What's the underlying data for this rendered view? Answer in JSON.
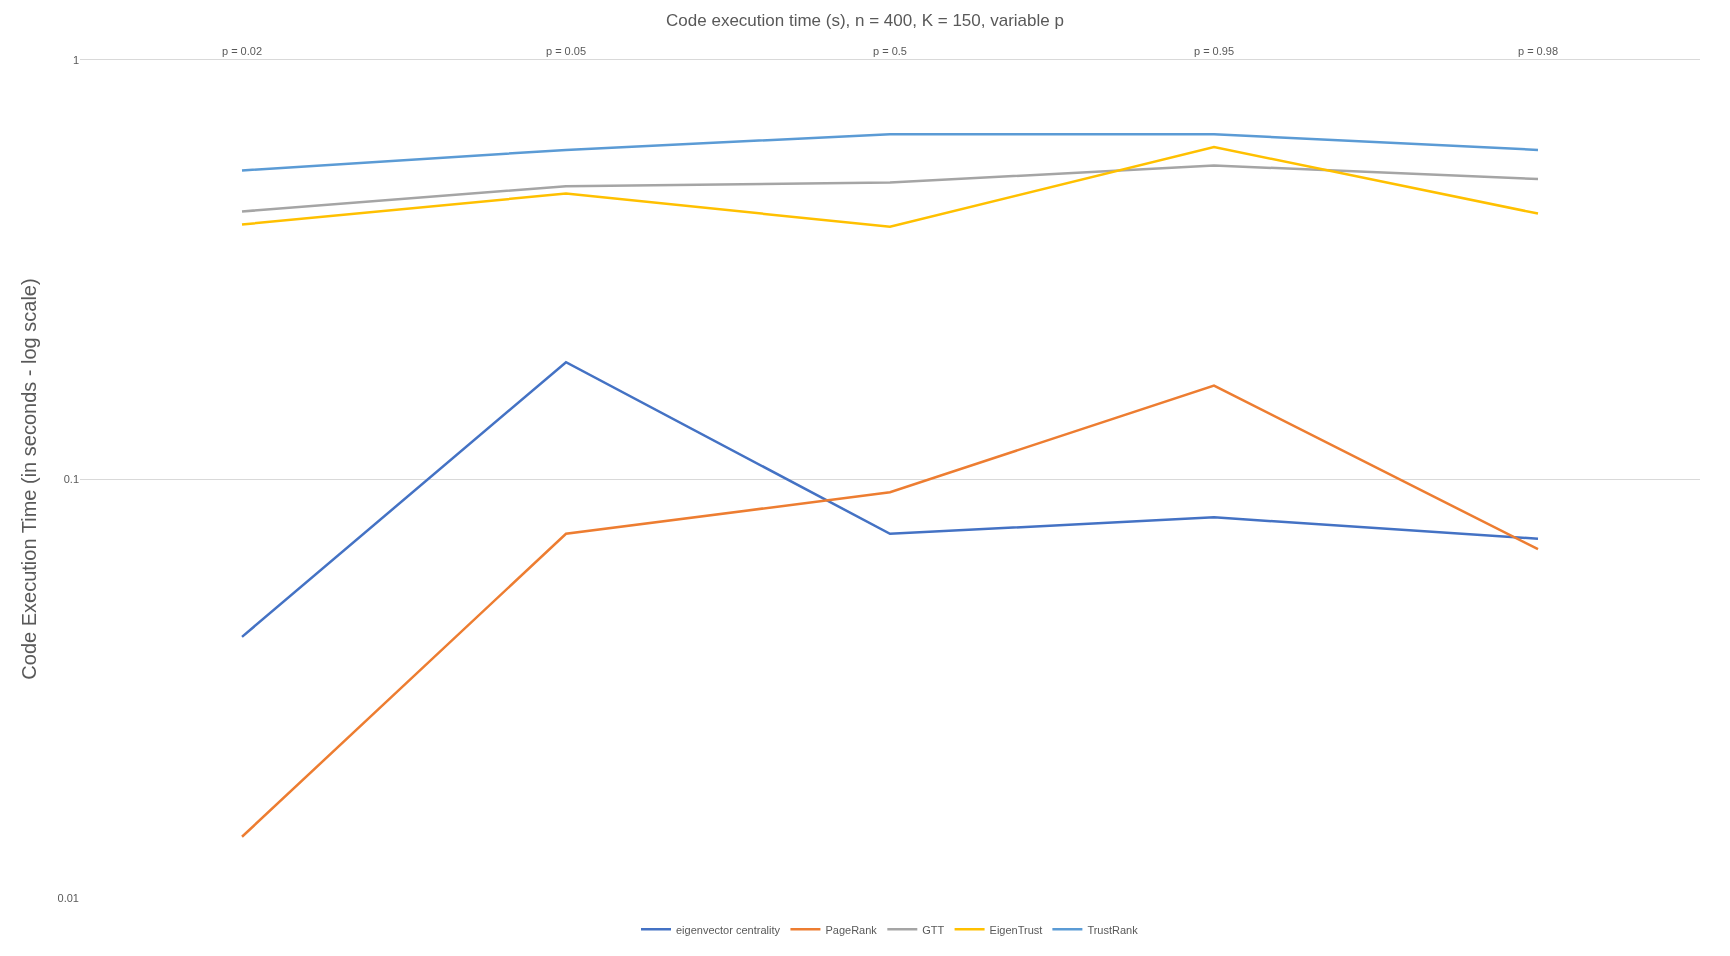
{
  "chart_data": {
    "type": "line",
    "title": "Code execution time (s), n = 400, K = 150, variable p",
    "ylabel": "Code Execution Time (in seconds - log scale)",
    "categories": [
      "p = 0.02",
      "p = 0.05",
      "p = 0.5",
      "p = 0.95",
      "p = 0.98"
    ],
    "series": [
      {
        "name": "eigenvector centrality",
        "color": "#4472c4",
        "values": [
          0.042,
          0.19,
          0.074,
          0.081,
          0.072
        ]
      },
      {
        "name": "PageRank",
        "color": "#ed7d31",
        "values": [
          0.014,
          0.074,
          0.093,
          0.167,
          0.068
        ]
      },
      {
        "name": "GTT",
        "color": "#a5a5a5",
        "values": [
          0.435,
          0.5,
          0.51,
          0.56,
          0.52
        ]
      },
      {
        "name": "EigenTrust",
        "color": "#ffc000",
        "values": [
          0.405,
          0.48,
          0.4,
          0.62,
          0.43
        ]
      },
      {
        "name": "TrustRank",
        "color": "#5b9bd5",
        "values": [
          0.545,
          0.61,
          0.665,
          0.665,
          0.61
        ]
      }
    ],
    "log": true,
    "ylim": [
      0.01,
      1
    ],
    "yticks": [
      0.01,
      0.1,
      1
    ],
    "grid": "y",
    "legend": "bottom",
    "marker": "none",
    "line_style": "solid"
  }
}
